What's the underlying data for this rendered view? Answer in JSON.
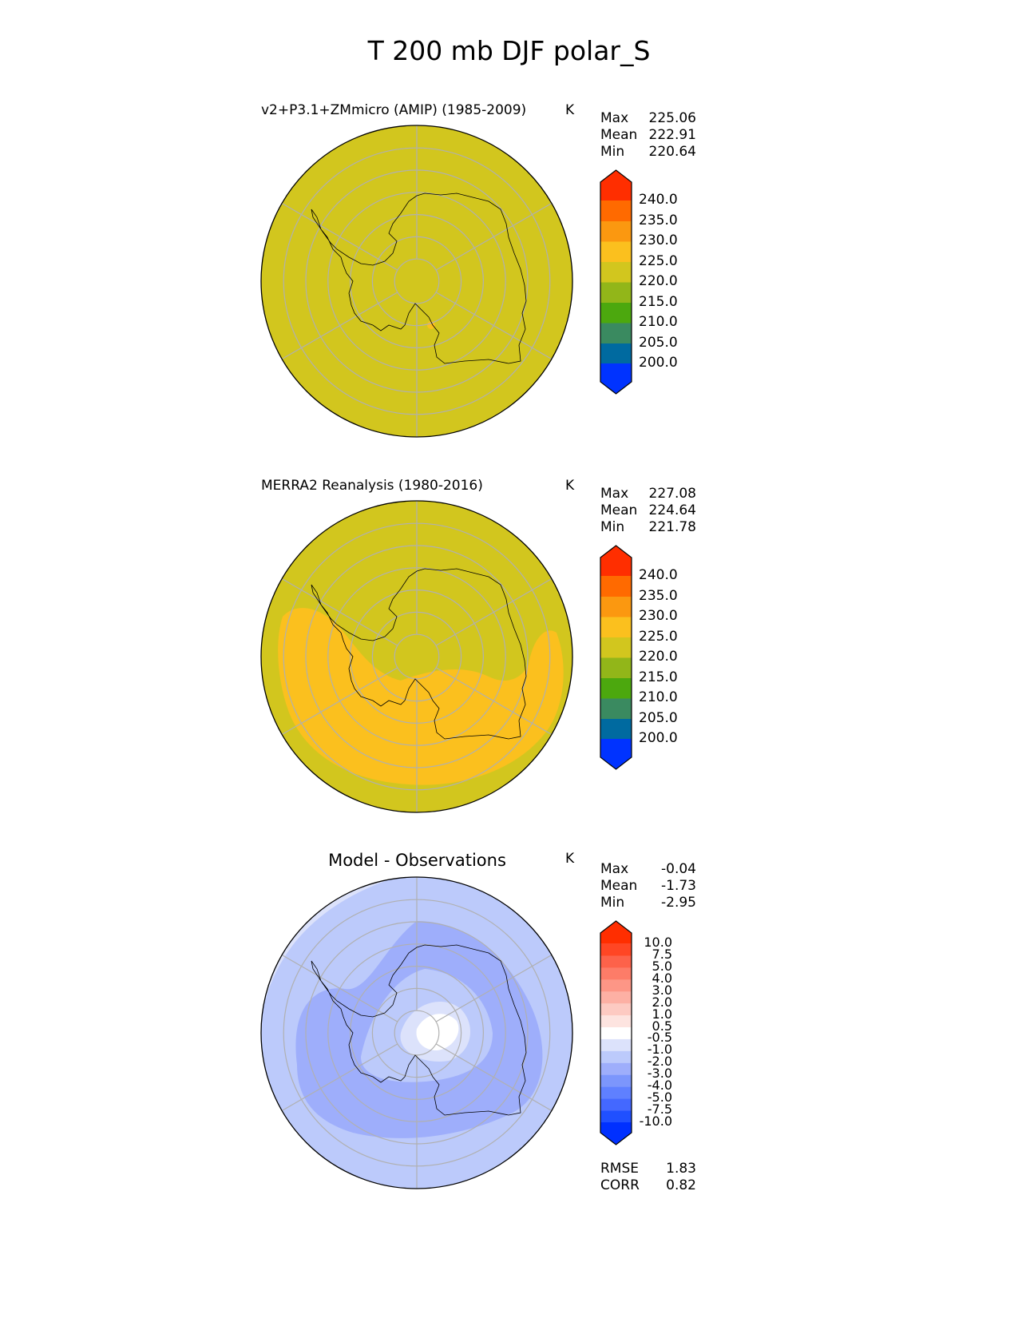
{
  "chart_data": {
    "type": "heatmap",
    "title": "T 200 mb DJF polar_S",
    "projection": "south polar stereographic",
    "panels": [
      {
        "title": "v2+P3.1+ZMmicro (AMIP) (1985-2009)",
        "units": "K",
        "stats": [
          {
            "label": "Max",
            "value": "225.06"
          },
          {
            "label": "Mean",
            "value": "222.91"
          },
          {
            "label": "Min",
            "value": "220.64"
          }
        ],
        "colorbar": {
          "levels": [
            "200.0",
            "205.0",
            "210.0",
            "215.0",
            "220.0",
            "225.0",
            "230.0",
            "235.0",
            "240.0"
          ],
          "colors": [
            "#0033ff",
            "#006aa0",
            "#3a8a60",
            "#4ca80e",
            "#92b619",
            "#d2c61e",
            "#fbc01e",
            "#fb9810",
            "#ff6a00",
            "#ff2e00"
          ],
          "extend": "both"
        },
        "field": "nearly uniform 220-225 K"
      },
      {
        "title": "MERRA2 Reanalysis (1980-2016)",
        "units": "K",
        "stats": [
          {
            "label": "Max",
            "value": "227.08"
          },
          {
            "label": "Mean",
            "value": "224.64"
          },
          {
            "label": "Min",
            "value": "221.78"
          }
        ],
        "colorbar": {
          "levels": [
            "200.0",
            "205.0",
            "210.0",
            "215.0",
            "220.0",
            "225.0",
            "230.0",
            "235.0",
            "240.0"
          ],
          "colors": [
            "#0033ff",
            "#006aa0",
            "#3a8a60",
            "#4ca80e",
            "#92b619",
            "#d2c61e",
            "#fbc01e",
            "#fb9810",
            "#ff6a00",
            "#ff2e00"
          ],
          "extend": "both"
        },
        "field": "220-225 K with 225-230 K band over southern ocean"
      },
      {
        "title": "Model - Observations",
        "units": "K",
        "stats": [
          {
            "label": "Max",
            "value": "-0.04"
          },
          {
            "label": "Mean",
            "value": "-1.73"
          },
          {
            "label": "Min",
            "value": "-2.95"
          }
        ],
        "colorbar": {
          "levels": [
            "-10.0",
            "-7.5",
            "-5.0",
            "-4.0",
            "-3.0",
            "-2.0",
            "-1.0",
            "-0.5",
            "0.5",
            "1.0",
            "2.0",
            "3.0",
            "4.0",
            "5.0",
            "7.5",
            "10.0"
          ],
          "colors": [
            "#0030ff",
            "#2050ff",
            "#4468ff",
            "#5f80ff",
            "#7c96fc",
            "#9eaefb",
            "#bccafb",
            "#dce2fb",
            "#ffffff",
            "#fde4e0",
            "#fdcac2",
            "#fdb0a4",
            "#fd9686",
            "#fd7c68",
            "#fd624a",
            "#ff4624",
            "#ff2e00"
          ],
          "extend": "both"
        },
        "field": "negative bias -1 to -3 K, near 0 over pole",
        "metrics": [
          {
            "label": "RMSE",
            "value": "1.83"
          },
          {
            "label": "CORR",
            "value": "0.82"
          }
        ]
      }
    ]
  }
}
